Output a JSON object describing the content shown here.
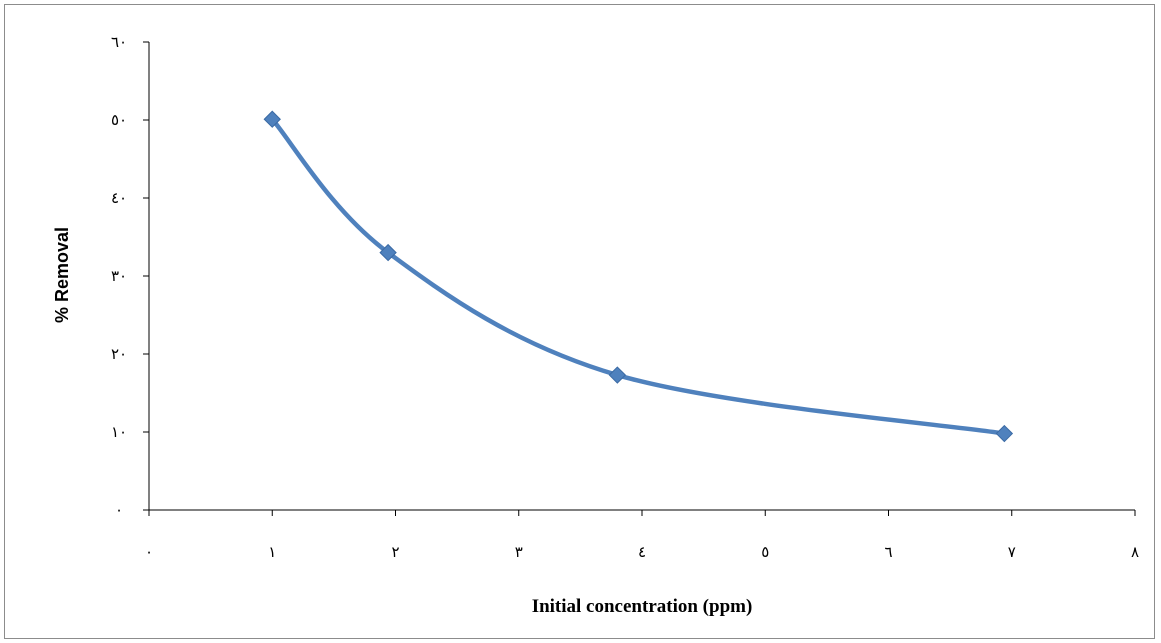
{
  "chart_data": {
    "type": "scatter",
    "xlabel": "Initial concentration (ppm)",
    "ylabel": "% Removal",
    "xlim": [
      0,
      8
    ],
    "ylim": [
      0,
      60
    ],
    "x_ticks": [
      0,
      1,
      2,
      3,
      4,
      5,
      6,
      7,
      8
    ],
    "y_ticks": [
      0,
      10,
      20,
      30,
      40,
      50,
      60
    ],
    "x_tick_labels": [
      "٠",
      "١",
      "٢",
      "٣",
      "٤",
      "٥",
      "٦",
      "٧",
      "٨"
    ],
    "y_tick_labels": [
      "٠",
      "١٠",
      "٢٠",
      "٣٠",
      "٤٠",
      "٥٠",
      "٦٠"
    ],
    "grid": false,
    "legend": "none",
    "smooth_line": true,
    "marker": "diamond",
    "colors": {
      "series": "#4f81bd",
      "marker_edge": "#3a6aa4",
      "axis": "#000000",
      "frame": "#8c8c8c"
    },
    "series": [
      {
        "x": [
          1.0,
          1.94,
          3.8,
          6.94
        ],
        "y": [
          50.1,
          33.0,
          17.3,
          9.8
        ]
      }
    ]
  }
}
